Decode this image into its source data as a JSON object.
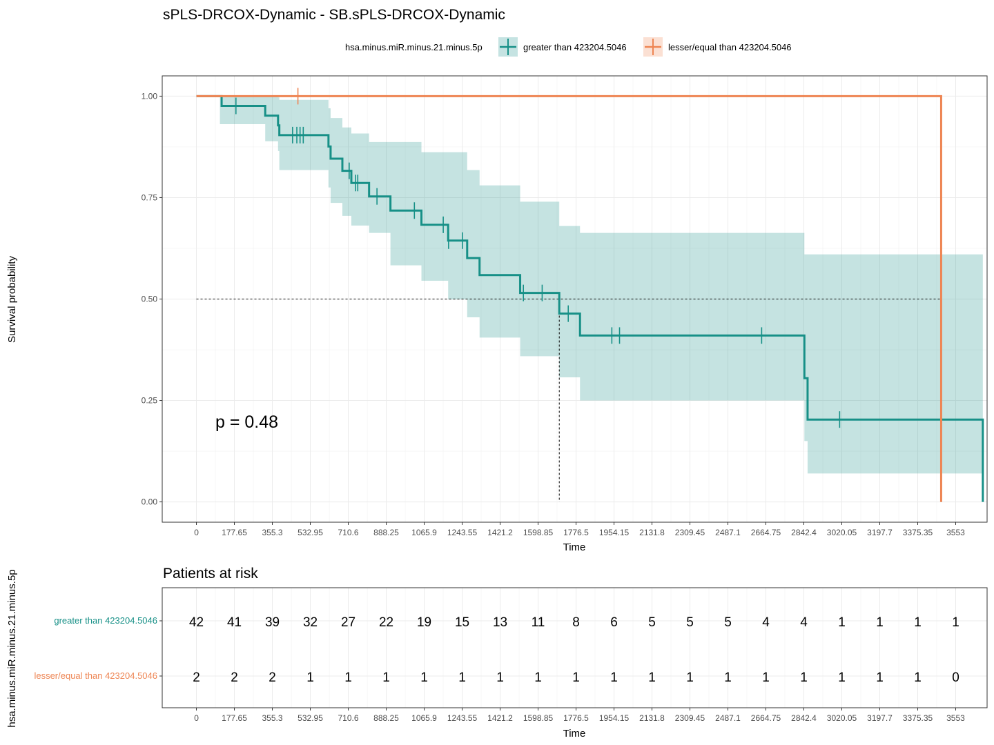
{
  "chart_data": {
    "type": "line",
    "title": "sPLS-DRCOX-Dynamic - SB.sPLS-DRCOX-Dynamic",
    "legend": {
      "title": "hsa.minus.miR.minus.21.minus.5p",
      "position": "top"
    },
    "xlabel": "Time",
    "ylabel": "Survival probability",
    "xlim": [
      -160,
      3700
    ],
    "ylim": [
      -0.05,
      1.05
    ],
    "x_ticks": [
      "0",
      "177.65",
      "355.3",
      "532.95",
      "710.6",
      "888.25",
      "1065.9",
      "1243.55",
      "1421.2",
      "1598.85",
      "1776.5",
      "1954.15",
      "2131.8",
      "2309.45",
      "2487.1",
      "2664.75",
      "2842.4",
      "3020.05",
      "3197.7",
      "3375.35",
      "3553"
    ],
    "y_ticks": [
      "0.00",
      "0.25",
      "0.50",
      "0.75",
      "1.00"
    ],
    "grid": true,
    "p_value": "p = 0.48",
    "series": [
      {
        "name": "greater than 423204.5046",
        "color": "#179087",
        "fill": "#c5e3e2",
        "steps": [
          [
            0,
            1.0
          ],
          [
            118,
            0.976
          ],
          [
            322,
            0.952
          ],
          [
            382,
            0.928
          ],
          [
            388,
            0.904
          ],
          [
            618,
            0.876
          ],
          [
            628,
            0.846
          ],
          [
            683,
            0.816
          ],
          [
            725,
            0.786
          ],
          [
            808,
            0.753
          ],
          [
            908,
            0.718
          ],
          [
            1053,
            0.683
          ],
          [
            1178,
            0.644
          ],
          [
            1267,
            0.601
          ],
          [
            1325,
            0.559
          ],
          [
            1515,
            0.515
          ],
          [
            1698,
            0.464
          ],
          [
            1795,
            0.41
          ],
          [
            2845,
            0.305
          ],
          [
            2860,
            0.203
          ],
          [
            3680,
            0.0
          ]
        ],
        "ci_steps": [
          [
            110,
            0.931,
            1.0
          ],
          [
            322,
            0.889,
            1.0
          ],
          [
            382,
            0.865,
            0.997
          ],
          [
            388,
            0.818,
            0.991
          ],
          [
            618,
            0.775,
            0.97
          ],
          [
            628,
            0.737,
            0.946
          ],
          [
            683,
            0.705,
            0.923
          ],
          [
            725,
            0.681,
            0.908
          ],
          [
            808,
            0.663,
            0.887
          ],
          [
            908,
            0.583,
            0.887
          ],
          [
            1053,
            0.545,
            0.862
          ],
          [
            1178,
            0.499,
            0.862
          ],
          [
            1267,
            0.455,
            0.818
          ],
          [
            1325,
            0.405,
            0.78
          ],
          [
            1515,
            0.359,
            0.74
          ],
          [
            1698,
            0.307,
            0.68
          ],
          [
            1795,
            0.25,
            0.663
          ],
          [
            2845,
            0.15,
            0.61
          ],
          [
            2860,
            0.07,
            0.61
          ],
          [
            3680,
            0.07,
            0.61
          ]
        ],
        "censors": [
          [
            185,
            0.976
          ],
          [
            450,
            0.904
          ],
          [
            470,
            0.904
          ],
          [
            485,
            0.904
          ],
          [
            500,
            0.904
          ],
          [
            715,
            0.816
          ],
          [
            745,
            0.786
          ],
          [
            755,
            0.786
          ],
          [
            845,
            0.753
          ],
          [
            1020,
            0.718
          ],
          [
            1155,
            0.683
          ],
          [
            1180,
            0.644
          ],
          [
            1245,
            0.644
          ],
          [
            1530,
            0.515
          ],
          [
            1618,
            0.515
          ],
          [
            1740,
            0.464
          ],
          [
            1944,
            0.41
          ],
          [
            1980,
            0.41
          ],
          [
            2645,
            0.41
          ],
          [
            3010,
            0.203
          ]
        ]
      },
      {
        "name": "lesser/equal than 423204.5046",
        "color": "#ee8553",
        "fill": "#fbe0d3",
        "steps": [
          [
            0,
            1.0
          ],
          [
            3485,
            1.0
          ],
          [
            3485,
            0.0
          ]
        ],
        "censors": [
          [
            475,
            1.0
          ]
        ]
      }
    ],
    "median_lines": [
      {
        "x": 1698,
        "y": 0.5
      },
      {
        "x": 3485,
        "y": 0.5
      }
    ]
  },
  "risk_table": {
    "title": "Patients at risk",
    "xlabel": "Time",
    "ylabel": "hsa.minus.miR.minus.21.minus.5p",
    "rows": [
      {
        "label": "greater than 423204.5046",
        "color": "#179087",
        "values": [
          "42",
          "41",
          "39",
          "32",
          "27",
          "22",
          "19",
          "15",
          "13",
          "11",
          "8",
          "6",
          "5",
          "5",
          "5",
          "4",
          "4",
          "1",
          "1",
          "1",
          "1"
        ]
      },
      {
        "label": "lesser/equal than 423204.5046",
        "color": "#ee8553",
        "values": [
          "2",
          "2",
          "2",
          "1",
          "1",
          "1",
          "1",
          "1",
          "1",
          "1",
          "1",
          "1",
          "1",
          "1",
          "1",
          "1",
          "1",
          "1",
          "1",
          "1",
          "0"
        ]
      }
    ]
  }
}
